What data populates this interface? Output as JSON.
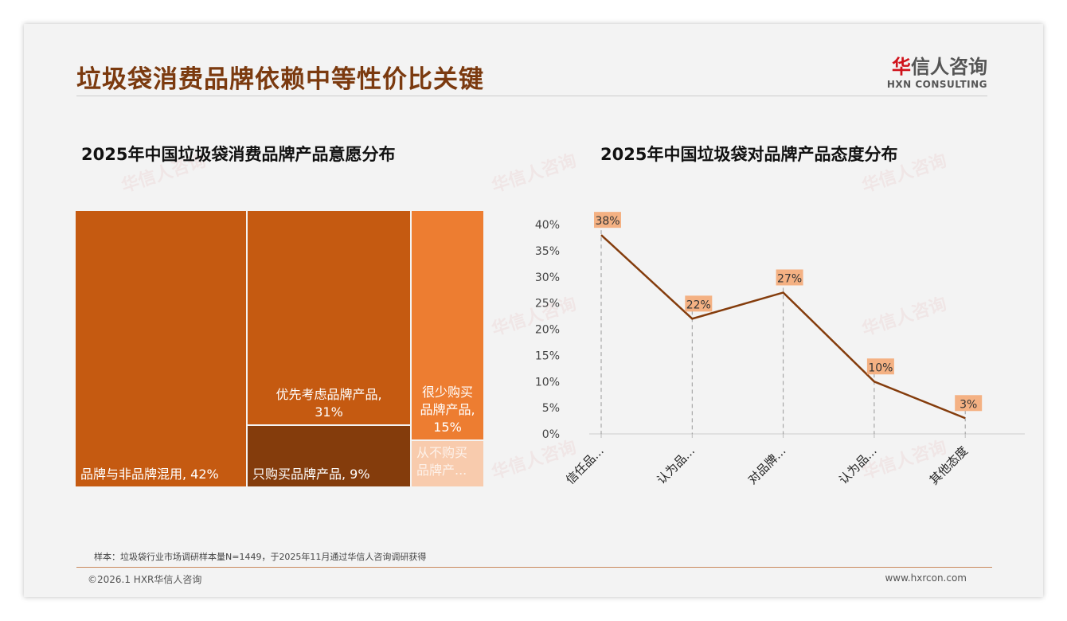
{
  "title": "垃圾袋消费品牌依赖中等性价比关键",
  "logo": {
    "cn_mark": "华",
    "cn_rest": "信人咨询",
    "en": "HXN CONSULTING"
  },
  "watermark": "华信人咨询",
  "left_title": "2025年中国垃圾袋消费品牌产品意愿分布",
  "right_title": "2025年中国垃圾袋对品牌产品态度分布",
  "note": "样本：垃圾袋行业市场调研样本量N=1449，于2025年11月通过华信人咨询调研获得",
  "copyright": "©2026.1 HXR华信人咨询",
  "website": "www.hxrcon.com",
  "chart_data": [
    {
      "type": "treemap",
      "title": "2025年中国垃圾袋消费品牌产品意愿分布",
      "items": [
        {
          "label": "品牌与非品牌混用, 42%",
          "name": "品牌与非品牌混用",
          "value": 42,
          "color": "#c55a11"
        },
        {
          "label": "优先考虑品牌产品,\n31%",
          "name": "优先考虑品牌产品",
          "value": 31,
          "color": "#c55a11"
        },
        {
          "label": "只购买品牌产品, 9%",
          "name": "只购买品牌产品",
          "value": 9,
          "color": "#843c0c"
        },
        {
          "label": "很少购买\n品牌产品,\n15%",
          "name": "很少购买品牌产品",
          "value": 15,
          "color": "#ed7d31"
        },
        {
          "label": "从不购买\n品牌产...",
          "name": "从不购买品牌产品",
          "value": 3,
          "color": "#f8cbad"
        }
      ]
    },
    {
      "type": "line",
      "title": "2025年中国垃圾袋对品牌产品态度分布",
      "categories": [
        "信任品...",
        "认为品...",
        "对品牌...",
        "认为品...",
        "其他态度"
      ],
      "values": [
        38,
        22,
        27,
        10,
        3
      ],
      "labels": [
        "38%",
        "22%",
        "27%",
        "10%",
        "3%"
      ],
      "yticks": [
        "0%",
        "5%",
        "10%",
        "15%",
        "20%",
        "25%",
        "30%",
        "35%",
        "40%"
      ],
      "ylim": [
        0,
        40
      ],
      "color": "#843c0c",
      "label_bg": "#f4b183"
    }
  ]
}
